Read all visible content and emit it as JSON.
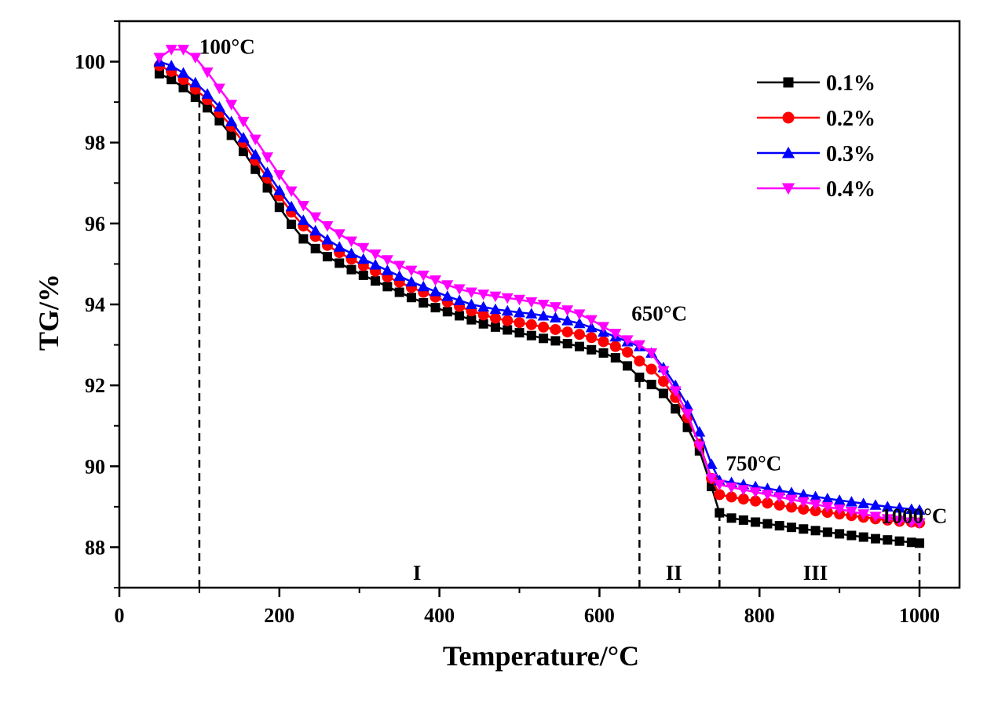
{
  "chart_data": {
    "type": "line",
    "title": "",
    "xlabel": "Temperature/°C",
    "ylabel": "TG/%",
    "xlim": [
      0,
      1050
    ],
    "ylim": [
      87,
      101
    ],
    "xticks": [
      0,
      200,
      400,
      600,
      800,
      1000
    ],
    "yticks": [
      88,
      90,
      92,
      94,
      96,
      98,
      100
    ],
    "grid": false,
    "legend": "top-right",
    "x": [
      50,
      65,
      80,
      95,
      110,
      125,
      140,
      155,
      170,
      185,
      200,
      215,
      230,
      245,
      260,
      275,
      290,
      305,
      320,
      335,
      350,
      365,
      380,
      395,
      410,
      425,
      440,
      455,
      470,
      485,
      500,
      515,
      530,
      545,
      560,
      575,
      590,
      605,
      620,
      635,
      650,
      665,
      680,
      695,
      710,
      725,
      740,
      750,
      765,
      780,
      795,
      810,
      825,
      840,
      855,
      870,
      885,
      900,
      915,
      930,
      945,
      960,
      975,
      990,
      1000
    ],
    "series": [
      {
        "name": "0.1%",
        "color": "#000000",
        "marker": "square",
        "values": [
          99.7,
          99.56,
          99.36,
          99.12,
          98.86,
          98.54,
          98.18,
          97.78,
          97.34,
          96.88,
          96.4,
          95.98,
          95.62,
          95.38,
          95.18,
          95.02,
          94.86,
          94.72,
          94.58,
          94.44,
          94.3,
          94.17,
          94.04,
          93.92,
          93.82,
          93.72,
          93.62,
          93.52,
          93.44,
          93.37,
          93.3,
          93.23,
          93.16,
          93.1,
          93.03,
          92.96,
          92.88,
          92.8,
          92.68,
          92.48,
          92.2,
          92.02,
          91.8,
          91.42,
          90.96,
          90.38,
          89.5,
          88.85,
          88.72,
          88.67,
          88.62,
          88.58,
          88.53,
          88.49,
          88.45,
          88.41,
          88.37,
          88.33,
          88.29,
          88.25,
          88.21,
          88.18,
          88.15,
          88.12,
          88.1
        ]
      },
      {
        "name": "0.2%",
        "color": "#ff0000",
        "marker": "circle",
        "values": [
          99.9,
          99.76,
          99.56,
          99.32,
          99.06,
          98.74,
          98.4,
          98.0,
          97.56,
          97.12,
          96.68,
          96.28,
          95.94,
          95.68,
          95.46,
          95.28,
          95.12,
          94.96,
          94.82,
          94.68,
          94.55,
          94.42,
          94.3,
          94.18,
          94.06,
          93.95,
          93.84,
          93.74,
          93.66,
          93.6,
          93.55,
          93.5,
          93.44,
          93.38,
          93.32,
          93.26,
          93.18,
          93.08,
          92.96,
          92.82,
          92.6,
          92.4,
          92.1,
          91.7,
          91.2,
          90.55,
          89.7,
          89.3,
          89.24,
          89.19,
          89.14,
          89.09,
          89.04,
          88.99,
          88.94,
          88.9,
          88.86,
          88.82,
          88.78,
          88.74,
          88.7,
          88.67,
          88.64,
          88.62,
          88.6
        ]
      },
      {
        "name": "0.3%",
        "color": "#0000ff",
        "marker": "triangle-up",
        "values": [
          100.0,
          99.9,
          99.72,
          99.48,
          99.2,
          98.88,
          98.52,
          98.12,
          97.7,
          97.26,
          96.82,
          96.42,
          96.08,
          95.82,
          95.6,
          95.42,
          95.26,
          95.12,
          94.98,
          94.84,
          94.7,
          94.56,
          94.44,
          94.32,
          94.2,
          94.1,
          94.0,
          93.94,
          93.88,
          93.84,
          93.8,
          93.77,
          93.72,
          93.67,
          93.6,
          93.53,
          93.43,
          93.32,
          93.2,
          93.08,
          92.96,
          92.8,
          92.44,
          92.0,
          91.5,
          90.85,
          90.05,
          89.65,
          89.6,
          89.55,
          89.5,
          89.45,
          89.4,
          89.35,
          89.3,
          89.25,
          89.2,
          89.16,
          89.12,
          89.08,
          89.04,
          89.0,
          88.97,
          88.94,
          88.92
        ]
      },
      {
        "name": "0.4%",
        "color": "#ff00ff",
        "marker": "triangle-down",
        "values": [
          100.1,
          100.3,
          100.3,
          100.1,
          99.74,
          99.34,
          98.94,
          98.52,
          98.08,
          97.64,
          97.2,
          96.8,
          96.44,
          96.16,
          95.94,
          95.74,
          95.56,
          95.4,
          95.24,
          95.1,
          94.96,
          94.84,
          94.72,
          94.6,
          94.48,
          94.38,
          94.3,
          94.25,
          94.2,
          94.16,
          94.12,
          94.06,
          94.0,
          93.94,
          93.86,
          93.76,
          93.62,
          93.45,
          93.28,
          93.12,
          93.0,
          92.8,
          92.36,
          91.86,
          91.3,
          90.5,
          89.7,
          89.55,
          89.48,
          89.42,
          89.36,
          89.3,
          89.24,
          89.18,
          89.12,
          89.06,
          89.0,
          88.94,
          88.88,
          88.82,
          88.76,
          88.7,
          88.66,
          88.62,
          88.6
        ]
      }
    ],
    "vlines": [
      {
        "x": 100,
        "y_top": 99.2
      },
      {
        "x": 650,
        "y_top": 92.2
      },
      {
        "x": 750,
        "y_top": 88.85
      },
      {
        "x": 1000,
        "y_top": 88.1
      }
    ],
    "annotations": [
      {
        "text": "100°C",
        "x": 100,
        "y": 100.2
      },
      {
        "text": "650°C",
        "x": 640,
        "y": 93.6
      },
      {
        "text": "750°C",
        "x": 758,
        "y": 89.9
      },
      {
        "text": "1000°C",
        "x": 952,
        "y": 88.6
      }
    ],
    "regions": [
      {
        "text": "I",
        "x": 372
      },
      {
        "text": "II",
        "x": 693
      },
      {
        "text": "III",
        "x": 870
      }
    ]
  }
}
